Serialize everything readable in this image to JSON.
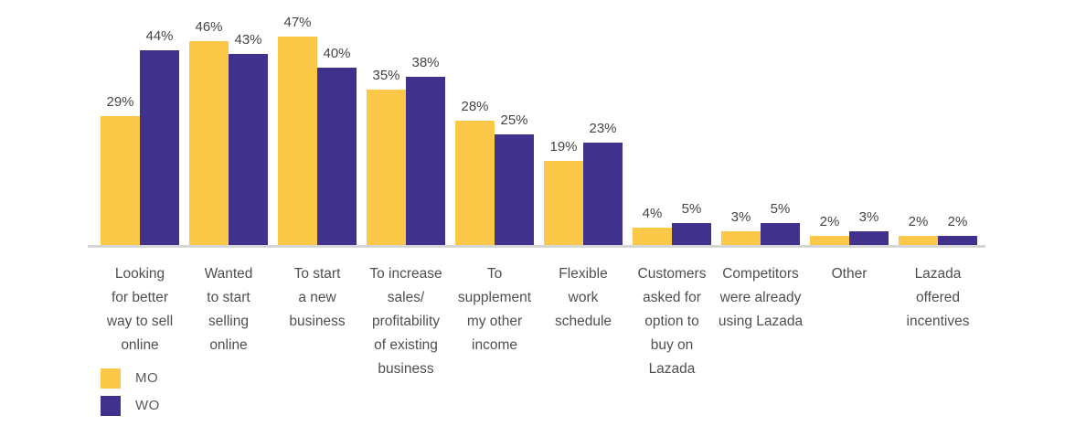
{
  "chart_data": {
    "type": "bar",
    "title": "",
    "xlabel": "",
    "ylabel": "",
    "value_suffix": "%",
    "ylim": [
      0,
      50
    ],
    "grid": false,
    "legend_position": "bottom-left",
    "categories": [
      "Looking\nfor better\nway to sell\nonline",
      "Wanted\nto start\nselling\nonline",
      "To start\na new\nbusiness",
      "To increase\nsales/\nprofitability\nof existing\nbusiness",
      "To\nsupplement\nmy other\nincome",
      "Flexible\nwork\nschedule",
      "Customers\nasked for\noption to\nbuy on\nLazada",
      "Competitors\nwere already\nusing Lazada",
      "Other",
      "Lazada\noffered\nincentives"
    ],
    "series": [
      {
        "name": "MO",
        "color": "#fdc748",
        "values": [
          29,
          46,
          47,
          35,
          28,
          19,
          4,
          3,
          2,
          2
        ]
      },
      {
        "name": "WO",
        "color": "#42318c",
        "values": [
          44,
          43,
          40,
          38,
          25,
          23,
          5,
          5,
          3,
          2
        ]
      }
    ]
  },
  "legend": {
    "items": [
      {
        "label": "MO",
        "color": "#fdc748"
      },
      {
        "label": "WO",
        "color": "#42318c"
      }
    ]
  },
  "colors": {
    "axis_line": "#d6d6d6",
    "value_text": "#444444",
    "category_text": "#4f4f4f",
    "background": "#ffffff"
  }
}
